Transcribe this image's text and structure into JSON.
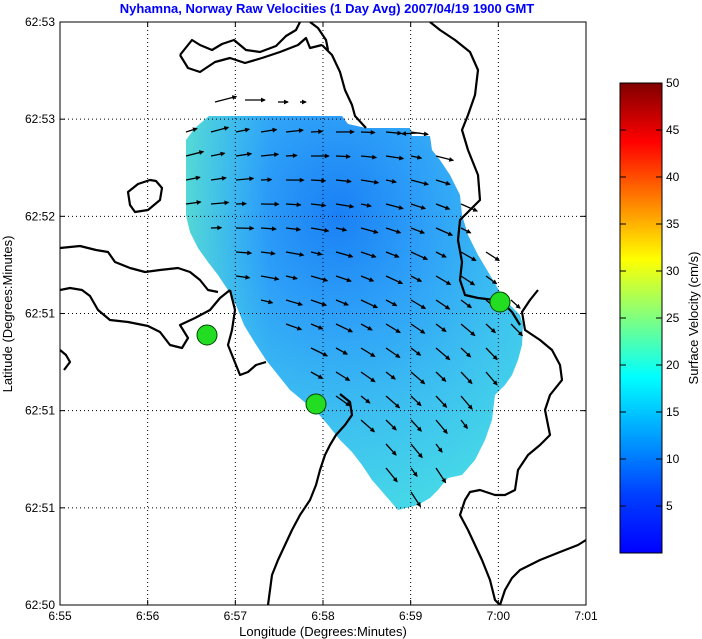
{
  "title": "Nyhamna, Norway Raw Velocities (1 Day Avg) 2007/04/19 1900 GMT",
  "colors": {
    "title": "#0000ff",
    "coastline": "#000000",
    "site_marker": "#22dd22"
  },
  "map": {
    "x_axis_label": "Longitude (Degrees:Minutes)",
    "y_axis_label": "Latitude (Degrees:Minutes)",
    "x_ticks": [
      "6:55",
      "6:56",
      "6:57",
      "6:58",
      "6:59",
      "7:00",
      "7:01"
    ],
    "y_ticks": [
      "62:53",
      "62:53",
      "62:52",
      "62:51",
      "62:51",
      "62:51",
      "62:50"
    ],
    "grid": true
  },
  "colorbar": {
    "label": "Surface Velocity (cm/s)",
    "ticks": [
      "50",
      "45",
      "40",
      "35",
      "30",
      "25",
      "20",
      "15",
      "10",
      "5"
    ],
    "range": [
      0,
      50
    ],
    "colormap": "jet"
  }
}
